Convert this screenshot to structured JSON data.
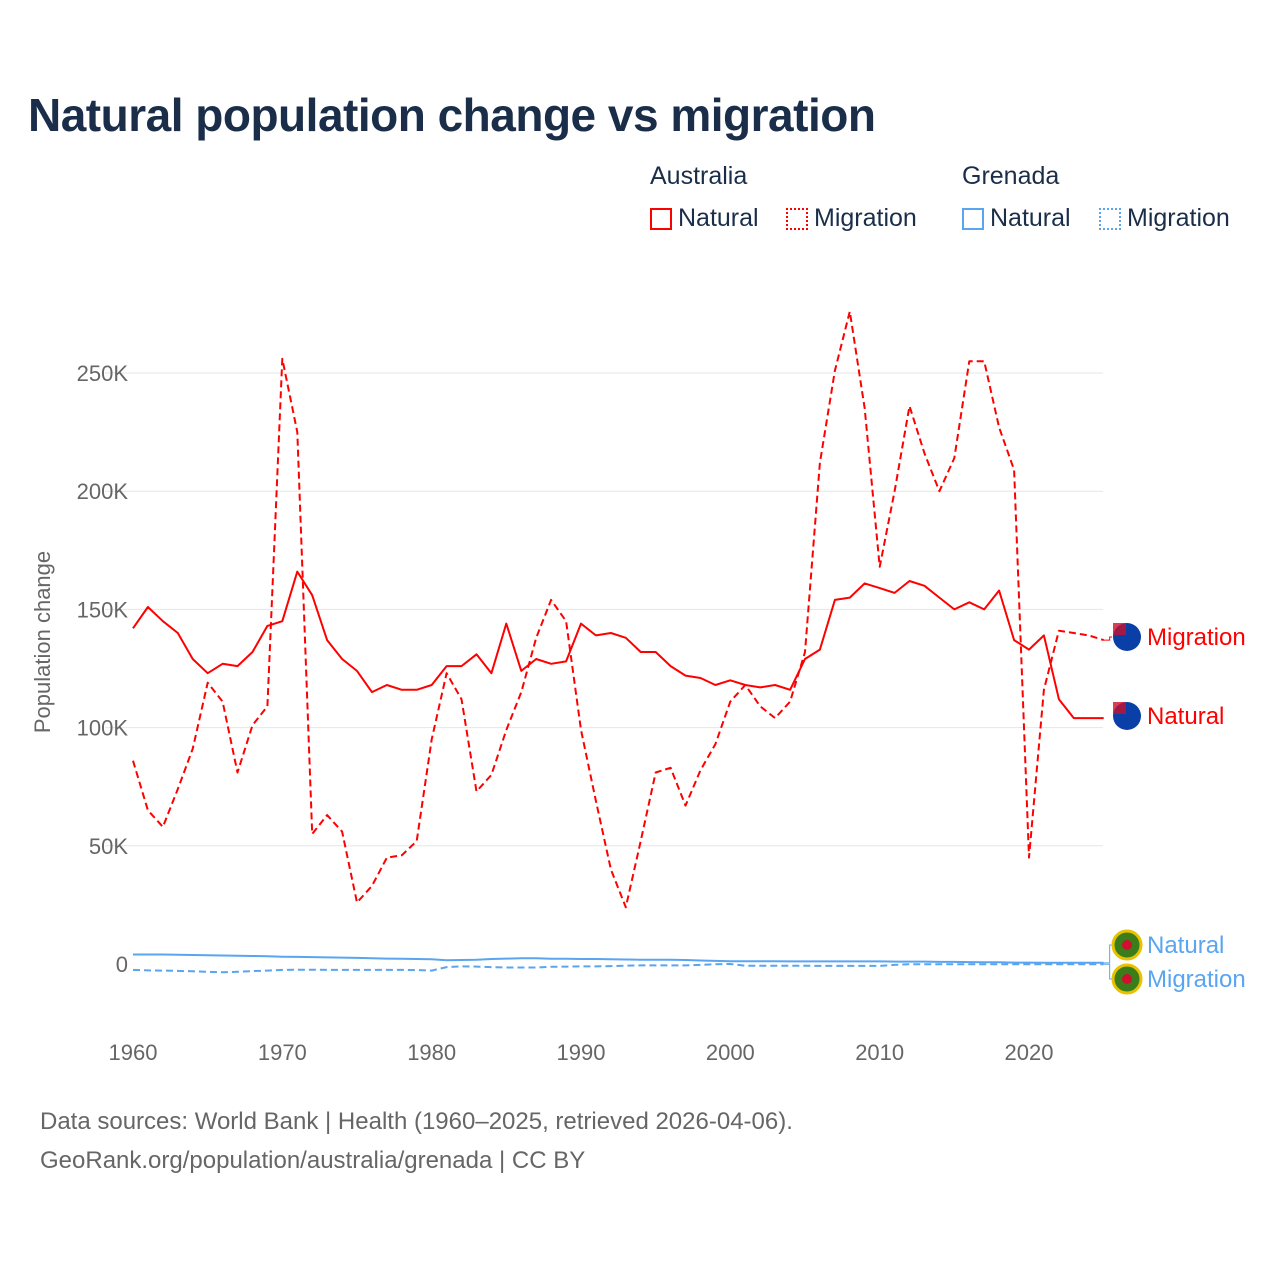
{
  "title": "Natural population change vs migration",
  "legend": {
    "groups": [
      {
        "name": "Australia",
        "items": [
          "Natural",
          "Migration"
        ]
      },
      {
        "name": "Grenada",
        "items": [
          "Natural",
          "Migration"
        ]
      }
    ]
  },
  "source_line1": "Data sources: World Bank | Health (1960–2025, retrieved 2026-04-06).",
  "source_line2": "GeoRank.org/population/australia/grenada | CC BY",
  "chart_data": {
    "type": "line",
    "title": "Natural population change vs migration",
    "xlabel": "",
    "ylabel": "Population change",
    "xlim": [
      1960,
      2025
    ],
    "ylim": [
      -10000,
      290000
    ],
    "x_ticks": [
      1960,
      1970,
      1980,
      1990,
      2000,
      2010,
      2020
    ],
    "x_tick_labels": [
      "1960",
      "1970",
      "1980",
      "1990",
      "2000",
      "2010",
      "2020"
    ],
    "y_ticks": [
      0,
      50000,
      100000,
      150000,
      200000,
      250000
    ],
    "y_tick_labels": [
      "0",
      "50K",
      "100K",
      "150K",
      "200K",
      "250K"
    ],
    "grid": true,
    "legend_position": "top-right",
    "x": [
      1960,
      1961,
      1962,
      1963,
      1964,
      1965,
      1966,
      1967,
      1968,
      1969,
      1970,
      1971,
      1972,
      1973,
      1974,
      1975,
      1976,
      1977,
      1978,
      1979,
      1980,
      1981,
      1982,
      1983,
      1984,
      1985,
      1986,
      1987,
      1988,
      1989,
      1990,
      1991,
      1992,
      1993,
      1994,
      1995,
      1996,
      1997,
      1998,
      1999,
      2000,
      2001,
      2002,
      2003,
      2004,
      2005,
      2006,
      2007,
      2008,
      2009,
      2010,
      2011,
      2012,
      2013,
      2014,
      2015,
      2016,
      2017,
      2018,
      2019,
      2020,
      2021,
      2022,
      2023,
      2024,
      2025
    ],
    "series": [
      {
        "name": "Australia Natural",
        "end_label": "Natural",
        "color": "#ff0000",
        "dash": "solid",
        "values": [
          142000,
          151000,
          145000,
          140000,
          129000,
          123000,
          127000,
          126000,
          132000,
          143000,
          145000,
          166000,
          156000,
          137000,
          129000,
          124000,
          115000,
          118000,
          116000,
          116000,
          118000,
          126000,
          126000,
          131000,
          123000,
          144000,
          124000,
          129000,
          127000,
          128000,
          144000,
          139000,
          140000,
          138000,
          132000,
          132000,
          126000,
          122000,
          121000,
          118000,
          120000,
          118000,
          117000,
          118000,
          116000,
          129000,
          133000,
          154000,
          155000,
          161000,
          159000,
          157000,
          162000,
          160000,
          155000,
          150000,
          153000,
          150000,
          158000,
          137000,
          133000,
          139000,
          112000,
          104000,
          104000,
          104000
        ]
      },
      {
        "name": "Australia Migration",
        "end_label": "Migration",
        "color": "#ff0000",
        "dash": "dashed",
        "values": [
          86000,
          65000,
          58000,
          74000,
          91000,
          119000,
          111000,
          81000,
          101000,
          109000,
          256000,
          225000,
          55000,
          63000,
          56000,
          26000,
          33000,
          45000,
          46000,
          52000,
          95000,
          123000,
          112000,
          73000,
          80000,
          99000,
          115000,
          138000,
          154000,
          145000,
          99000,
          69000,
          40000,
          24000,
          52000,
          81000,
          83000,
          67000,
          82000,
          93000,
          111000,
          118000,
          109000,
          104000,
          111000,
          132000,
          212000,
          251000,
          276000,
          235000,
          168000,
          200000,
          236000,
          216000,
          200000,
          214000,
          255000,
          255000,
          227000,
          209000,
          45000,
          116000,
          141000,
          140000,
          139000,
          137000
        ]
      },
      {
        "name": "Grenada Natural",
        "end_label": "Natural",
        "color": "#5aa5f0",
        "dash": "solid",
        "values": [
          4000,
          4000,
          4000,
          3900,
          3800,
          3700,
          3600,
          3500,
          3400,
          3300,
          3100,
          3000,
          2900,
          2800,
          2700,
          2600,
          2400,
          2300,
          2200,
          2100,
          2000,
          1600,
          1700,
          1800,
          2100,
          2300,
          2400,
          2400,
          2200,
          2200,
          2100,
          2100,
          2000,
          1900,
          1800,
          1800,
          1800,
          1700,
          1500,
          1300,
          1200,
          1200,
          1200,
          1200,
          1100,
          1100,
          1100,
          1100,
          1100,
          1100,
          1100,
          1000,
          1000,
          1000,
          900,
          900,
          800,
          700,
          700,
          600,
          600,
          500,
          500,
          500,
          500,
          500
        ]
      },
      {
        "name": "Grenada Migration",
        "end_label": "Migration",
        "color": "#5aa5f0",
        "dash": "dashed",
        "values": [
          -2500,
          -2700,
          -2800,
          -2900,
          -3100,
          -3300,
          -3500,
          -3300,
          -3000,
          -2800,
          -2500,
          -2400,
          -2400,
          -2500,
          -2500,
          -2500,
          -2500,
          -2500,
          -2500,
          -2600,
          -2800,
          -1300,
          -1000,
          -1100,
          -1300,
          -1500,
          -1500,
          -1500,
          -1200,
          -1100,
          -1000,
          -1000,
          -900,
          -700,
          -600,
          -600,
          -600,
          -600,
          -400,
          -100,
          0,
          -700,
          -700,
          -700,
          -700,
          -700,
          -800,
          -800,
          -800,
          -800,
          -800,
          -400,
          -100,
          -100,
          -100,
          -100,
          -100,
          -100,
          -100,
          -100,
          -100,
          -100,
          -100,
          -100,
          -100,
          -100
        ]
      }
    ]
  }
}
